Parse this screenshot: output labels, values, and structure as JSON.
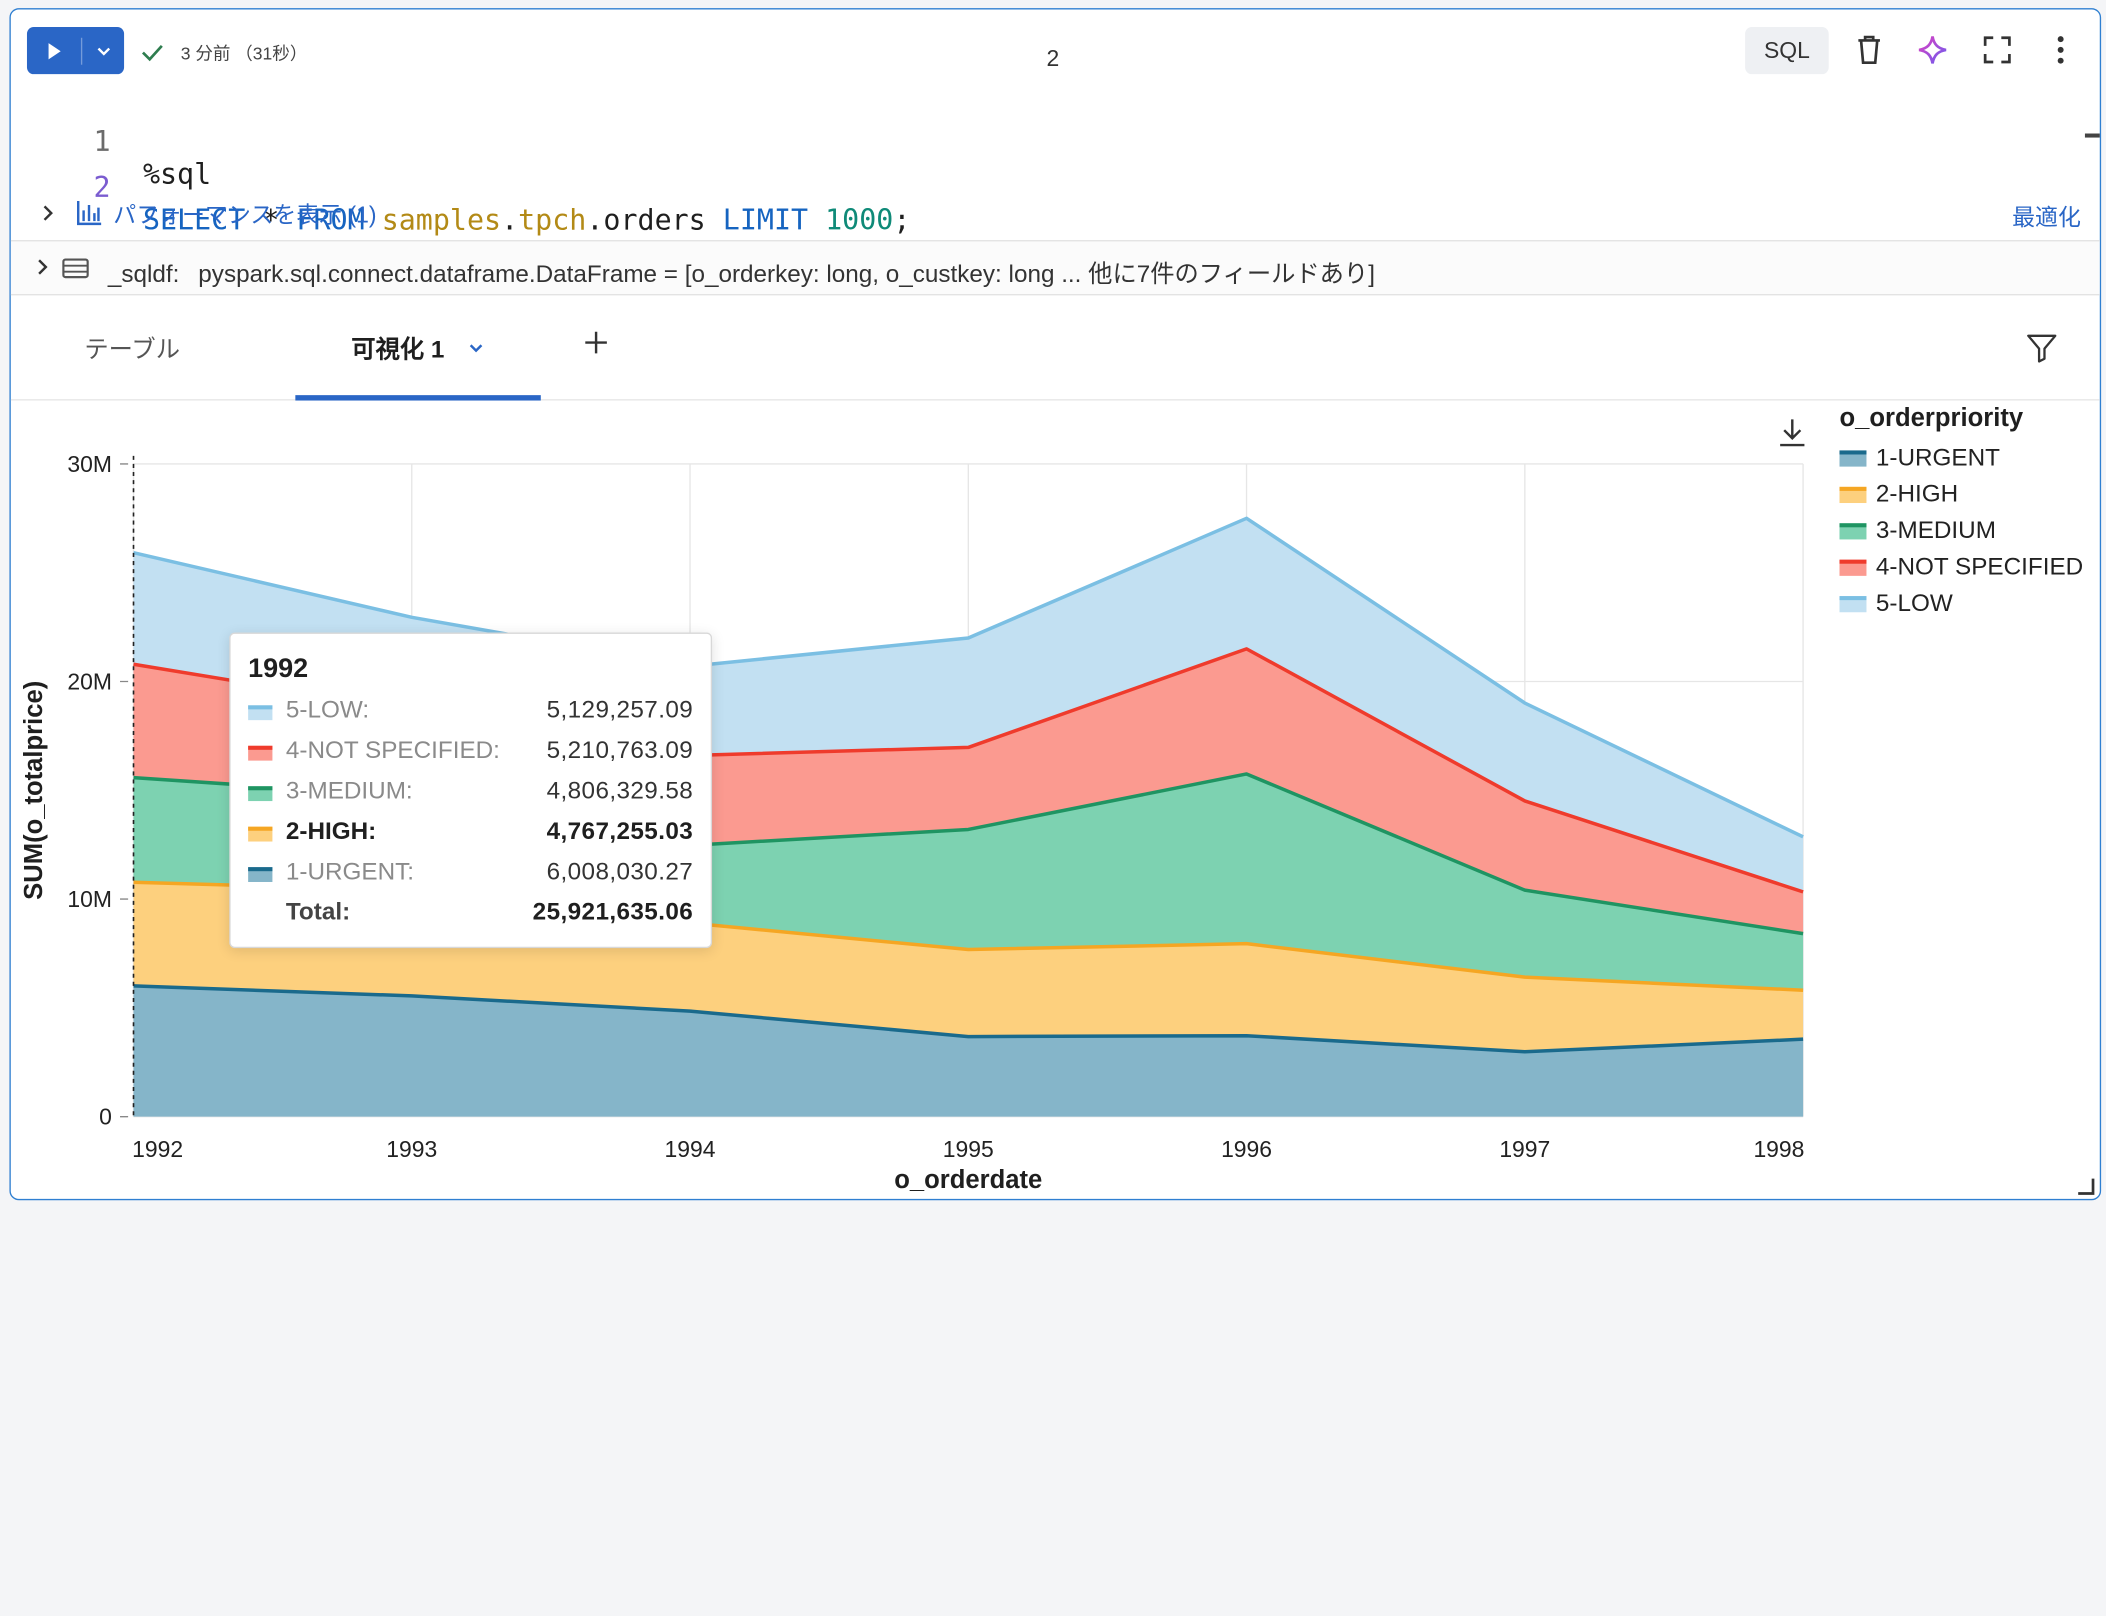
{
  "toolbar": {
    "status_text": "3 分前 （31秒）",
    "cell_number": "2",
    "language": "SQL"
  },
  "code": {
    "lines": [
      {
        "num": "1",
        "magic": "%sql"
      },
      {
        "num": "2",
        "kw1": "SELECT",
        "star": " * ",
        "kw2": "FROM",
        "obj1": "samples",
        "dot1": ".",
        "obj2": "tpch",
        "dot2": ".",
        "obj3": "orders",
        "kw3": "LIMIT",
        "limit": "1000",
        "end": ";"
      }
    ]
  },
  "performance": {
    "label": "パフォーマンスを表示 (1)",
    "optimize": "最適化"
  },
  "dataframe": {
    "name": "_sqldf:",
    "type": "pyspark.sql.connect.dataframe.DataFrame = [o_orderkey: long, o_custkey: long ... 他に7件のフィールドあり]"
  },
  "tabs": [
    {
      "label": "テーブル",
      "active": false
    },
    {
      "label": "可視化 1",
      "active": true
    }
  ],
  "colors": {
    "accent": "#2a66c6",
    "urgent": "#1a6a8c",
    "high": "#f5a623",
    "medium": "#1f9462",
    "not_specified": "#ef3b2c",
    "low": "#7bbfe3"
  },
  "chart_data": {
    "type": "area",
    "stacked": true,
    "xlabel": "o_orderdate",
    "ylabel": "SUM(o_totalprice)",
    "x": [
      "1992",
      "1993",
      "1994",
      "1995",
      "1996",
      "1997",
      "1998"
    ],
    "ylim": [
      0,
      30000000
    ],
    "yticks": [
      0,
      10000000,
      20000000,
      30000000
    ],
    "ytick_labels": [
      "0",
      "10M",
      "20M",
      "30M"
    ],
    "grid": true,
    "legend_title": "o_orderpriority",
    "legend_position": "right",
    "series": [
      {
        "name": "1-URGENT",
        "color": "#1a6a8c",
        "fill": "#85b5c9",
        "values": [
          6008030.27,
          5550000,
          4850000,
          3680000,
          3720000,
          2980000,
          3560000
        ]
      },
      {
        "name": "2-HIGH",
        "color": "#f5a623",
        "fill": "#fdd07e",
        "values": [
          4767255.03,
          4850000,
          4050000,
          4000000,
          4230000,
          3430000,
          2250000
        ]
      },
      {
        "name": "3-MEDIUM",
        "color": "#1f9462",
        "fill": "#7dd2b1",
        "values": [
          4806329.58,
          4320000,
          3570000,
          5520000,
          7800000,
          4000000,
          2600000
        ]
      },
      {
        "name": "4-NOT SPECIFIED",
        "color": "#ef3b2c",
        "fill": "#fb9a90",
        "values": [
          5210763.09,
          3970000,
          4130000,
          3770000,
          5750000,
          4100000,
          1920000
        ]
      },
      {
        "name": "5-LOW",
        "color": "#7bbfe3",
        "fill": "#c2e0f2",
        "values": [
          5129257.09,
          4260000,
          4100000,
          5030000,
          6000000,
          4500000,
          2530000
        ]
      }
    ],
    "tooltip": {
      "title": "1992",
      "rows": [
        {
          "label": "5-LOW:",
          "value": "5,129,257.09",
          "color": "#c2e0f2",
          "line": "#7bbfe3",
          "highlight": false
        },
        {
          "label": "4-NOT SPECIFIED:",
          "value": "5,210,763.09",
          "color": "#fb9a90",
          "line": "#ef3b2c",
          "highlight": false
        },
        {
          "label": "3-MEDIUM:",
          "value": "4,806,329.58",
          "color": "#7dd2b1",
          "line": "#1f9462",
          "highlight": false
        },
        {
          "label": "2-HIGH:",
          "value": "4,767,255.03",
          "color": "#fdd07e",
          "line": "#f5a623",
          "highlight": true
        },
        {
          "label": "1-URGENT:",
          "value": "6,008,030.27",
          "color": "#85b5c9",
          "line": "#1a6a8c",
          "highlight": false
        }
      ],
      "total_label": "Total:",
      "total_value": "25,921,635.06"
    }
  }
}
